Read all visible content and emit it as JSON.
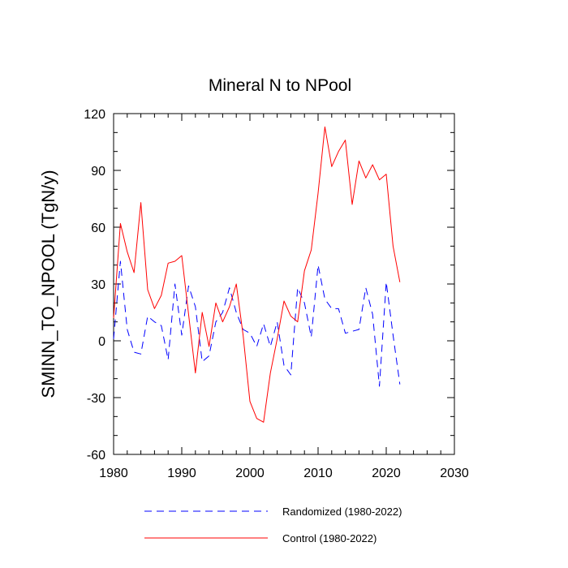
{
  "chart_data": {
    "type": "line",
    "title": "Mineral N to NPool",
    "xlabel": "",
    "ylabel": "SMINN_TO_NPOOL  (TgN/y)",
    "xlim": [
      1980,
      2030
    ],
    "ylim": [
      -60,
      120
    ],
    "xticks": [
      1980,
      1990,
      2000,
      2010,
      2020,
      2030
    ],
    "yticks": [
      -60,
      -30,
      0,
      30,
      60,
      90,
      120
    ],
    "xtick_labels": [
      "1980",
      "1990",
      "2000",
      "2010",
      "2020",
      "2030"
    ],
    "ytick_labels": [
      "-60",
      "-30",
      "0",
      "30",
      "60",
      "90",
      "120"
    ],
    "x": [
      1980,
      1981,
      1982,
      1983,
      1984,
      1985,
      1986,
      1987,
      1988,
      1989,
      1990,
      1991,
      1992,
      1993,
      1994,
      1995,
      1996,
      1997,
      1998,
      1999,
      2000,
      2001,
      2002,
      2003,
      2004,
      2005,
      2006,
      2007,
      2008,
      2009,
      2010,
      2011,
      2012,
      2013,
      2014,
      2015,
      2016,
      2017,
      2018,
      2019,
      2020,
      2021,
      2022
    ],
    "series": [
      {
        "name": "Randomized (1980-2022)",
        "color": "#0000ff",
        "style": "dashed",
        "values": [
          1,
          42,
          6,
          -6,
          -7,
          13,
          10,
          8,
          -10,
          30,
          3,
          29,
          18,
          -11,
          -8,
          10,
          15,
          28,
          15,
          6,
          4,
          -3,
          9,
          -3,
          10,
          -13,
          -18,
          28,
          20,
          2,
          40,
          22,
          17,
          17,
          4,
          5,
          6,
          28,
          14,
          -24,
          31,
          3,
          -23
        ]
      },
      {
        "name": "Control (1980-2022)",
        "color": "#ff0000",
        "style": "solid",
        "values": [
          12,
          62,
          47,
          36,
          73,
          27,
          17,
          24,
          41,
          42,
          45,
          14,
          -17,
          15,
          -3,
          20,
          10,
          18,
          30,
          3,
          -32,
          -41,
          -43,
          -17,
          1,
          21,
          13,
          10,
          37,
          48,
          78,
          113,
          92,
          100,
          106,
          72,
          95,
          86,
          93,
          85,
          88,
          50,
          31
        ]
      }
    ],
    "legend": {
      "placement": "bottom-center",
      "entries": [
        "Randomized (1980-2022)",
        "Control (1980-2022)"
      ]
    }
  }
}
